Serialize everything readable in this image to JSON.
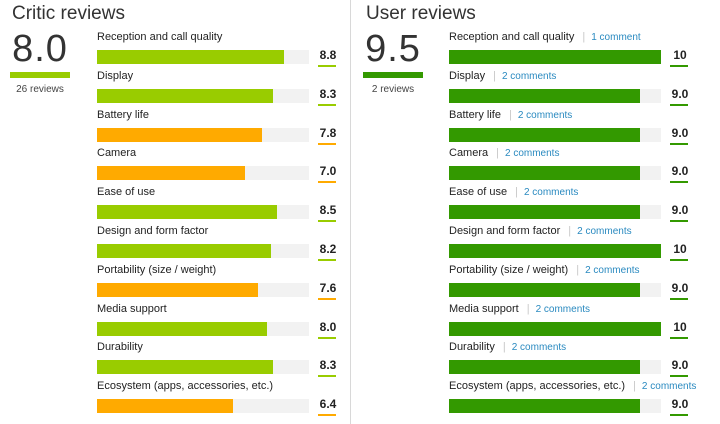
{
  "colors": {
    "critic_high": "#99cc00",
    "critic_low": "#ffaa00",
    "user": "#339900",
    "track": "#f2f2f2"
  },
  "critic": {
    "title": "Critic reviews",
    "score": "8.0",
    "count": "26 reviews",
    "rows": [
      {
        "label": "Reception and call quality",
        "value": "8.8",
        "fraction": 0.88,
        "tier": "high"
      },
      {
        "label": "Display",
        "value": "8.3",
        "fraction": 0.83,
        "tier": "high"
      },
      {
        "label": "Battery life",
        "value": "7.8",
        "fraction": 0.78,
        "tier": "low"
      },
      {
        "label": "Camera",
        "value": "7.0",
        "fraction": 0.7,
        "tier": "low"
      },
      {
        "label": "Ease of use",
        "value": "8.5",
        "fraction": 0.85,
        "tier": "high"
      },
      {
        "label": "Design and form factor",
        "value": "8.2",
        "fraction": 0.82,
        "tier": "high"
      },
      {
        "label": "Portability (size / weight)",
        "value": "7.6",
        "fraction": 0.76,
        "tier": "low"
      },
      {
        "label": "Media support",
        "value": "8.0",
        "fraction": 0.8,
        "tier": "high"
      },
      {
        "label": "Durability",
        "value": "8.3",
        "fraction": 0.83,
        "tier": "high"
      },
      {
        "label": "Ecosystem (apps, accessories, etc.)",
        "value": "6.4",
        "fraction": 0.64,
        "tier": "low"
      }
    ]
  },
  "user": {
    "title": "User reviews",
    "score": "9.5",
    "count": "2 reviews",
    "rows": [
      {
        "label": "Reception and call quality",
        "comments": "1 comment",
        "value": "10",
        "fraction": 1.0
      },
      {
        "label": "Display",
        "comments": "2 comments",
        "value": "9.0",
        "fraction": 0.9
      },
      {
        "label": "Battery life",
        "comments": "2 comments",
        "value": "9.0",
        "fraction": 0.9
      },
      {
        "label": "Camera",
        "comments": "2 comments",
        "value": "9.0",
        "fraction": 0.9
      },
      {
        "label": "Ease of use",
        "comments": "2 comments",
        "value": "9.0",
        "fraction": 0.9
      },
      {
        "label": "Design and form factor",
        "comments": "2 comments",
        "value": "10",
        "fraction": 1.0
      },
      {
        "label": "Portability (size / weight)",
        "comments": "2 comments",
        "value": "9.0",
        "fraction": 0.9
      },
      {
        "label": "Media support",
        "comments": "2 comments",
        "value": "10",
        "fraction": 1.0
      },
      {
        "label": "Durability",
        "comments": "2 comments",
        "value": "9.0",
        "fraction": 0.9
      },
      {
        "label": "Ecosystem (apps, accessories, etc.)",
        "comments": "2 comments",
        "value": "9.0",
        "fraction": 0.9
      }
    ]
  }
}
